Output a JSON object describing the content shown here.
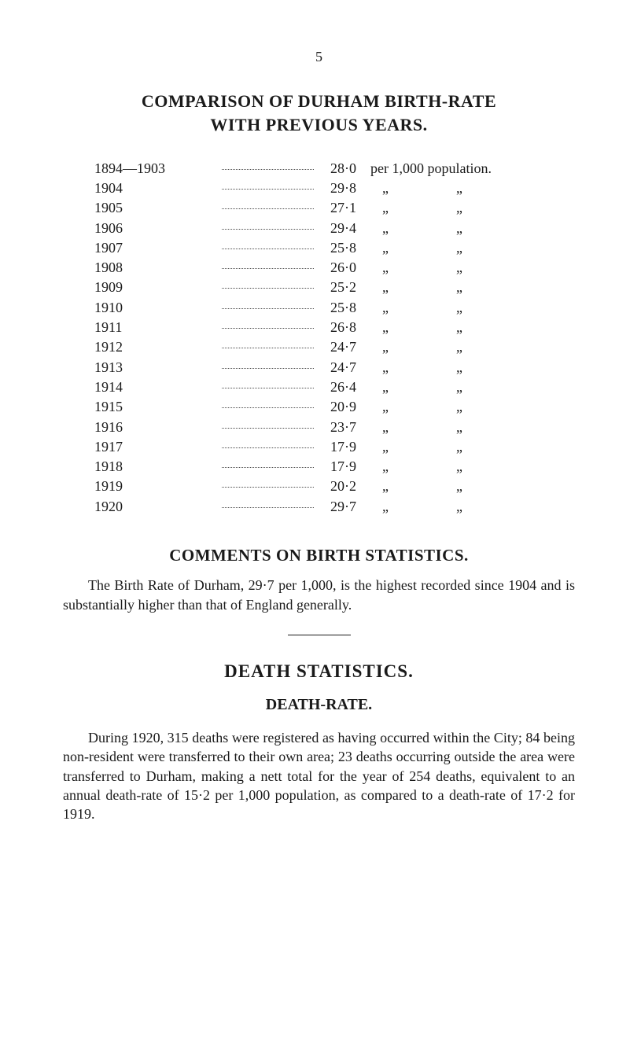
{
  "page_number": "5",
  "heading_line1": "COMPARISON OF DURHAM BIRTH-RATE",
  "heading_line2": "WITH PREVIOUS YEARS.",
  "first_row_suffix": "per 1,000 population.",
  "ditto_mark": "„",
  "rows": [
    {
      "year": "1894—1903",
      "value": "28·0"
    },
    {
      "year": "1904",
      "value": "29·8"
    },
    {
      "year": "1905",
      "value": "27·1"
    },
    {
      "year": "1906",
      "value": "29·4"
    },
    {
      "year": "1907",
      "value": "25·8"
    },
    {
      "year": "1908",
      "value": "26·0"
    },
    {
      "year": "1909",
      "value": "25·2"
    },
    {
      "year": "1910",
      "value": "25·8"
    },
    {
      "year": "1911",
      "value": "26·8"
    },
    {
      "year": "1912",
      "value": "24·7"
    },
    {
      "year": "1913",
      "value": "24·7"
    },
    {
      "year": "1914",
      "value": "26·4"
    },
    {
      "year": "1915",
      "value": "20·9"
    },
    {
      "year": "1916",
      "value": "23·7"
    },
    {
      "year": "1917",
      "value": "17·9"
    },
    {
      "year": "1918",
      "value": "17·9"
    },
    {
      "year": "1919",
      "value": "20·2"
    },
    {
      "year": "1920",
      "value": "29·7"
    }
  ],
  "comments_heading": "COMMENTS ON BIRTH STATISTICS.",
  "comments_para": "The Birth Rate of Durham, 29·7 per 1,000, is the highest recorded since 1904 and is substantially higher than that of England generally.",
  "death_heading": "DEATH STATISTICS.",
  "death_sub": "DEATH-RATE.",
  "death_para": "During 1920, 315 deaths were registered as having occurred within the City; 84 being non-resident were transferred to their own area; 23 deaths occurring outside the area were transferred to Durham, making a nett total for the year of 254 deaths, equivalent to an annual death-rate of 15·2 per 1,000 population, as compared to a death-rate of 17·2 for 1919."
}
